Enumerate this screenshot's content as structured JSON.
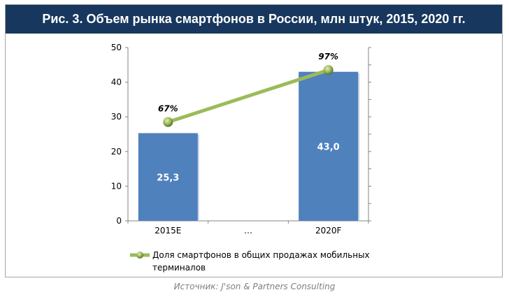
{
  "chart_data": {
    "type": "bar",
    "title": "Рис. 3. Объем рынка смартфонов в России, млн штук, 2015, 2020 гг.",
    "categories": [
      "2015E",
      "…",
      "2020F"
    ],
    "series": [
      {
        "type": "bar",
        "values": [
          25.3,
          null,
          43.0
        ],
        "labels": [
          "25,3",
          "",
          "43,0"
        ],
        "color": "#4f81bd"
      },
      {
        "type": "line",
        "axis": "secondary",
        "name": "Доля смартфонов в общих продажах мобильных терминалов",
        "name_lines": [
          "Доля смартфонов в общих продажах мобильных",
          "терминалов"
        ],
        "values": [
          67,
          null,
          97
        ],
        "labels": [
          "67%",
          "",
          "97%"
        ],
        "color": "#9bbb59"
      }
    ],
    "yaxis": {
      "range": [
        0,
        50
      ],
      "ticks": [
        "0",
        "10",
        "20",
        "30",
        "40",
        "50"
      ]
    },
    "y2axis": {
      "range": [
        10,
        110
      ],
      "labels_shown": false
    },
    "grid": false,
    "legend": "bottom"
  },
  "source": "Источник: J'son & Partners Consulting",
  "colors": {
    "title_bg": "#17375e",
    "bar": "#4f81bd",
    "line": "#9bbb59"
  }
}
